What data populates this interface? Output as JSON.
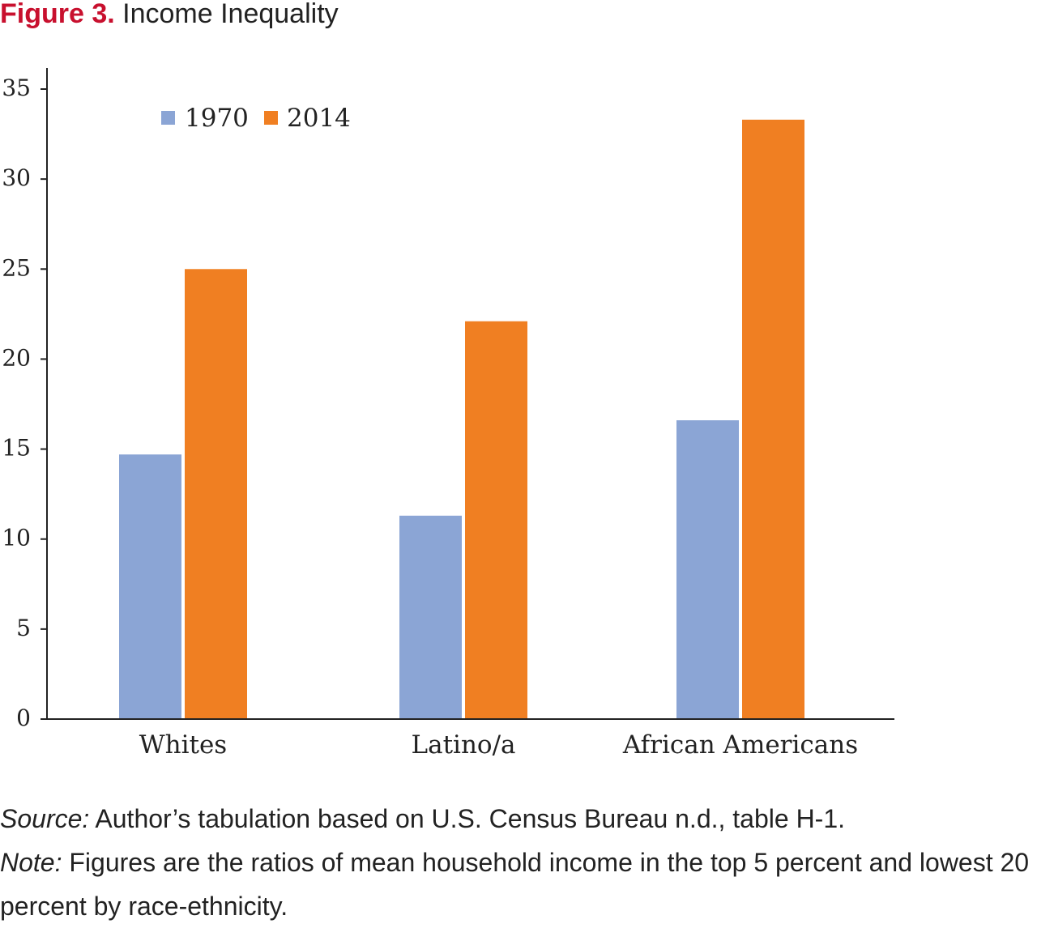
{
  "figure": {
    "label": "Figure 3.",
    "title": "Income Inequality"
  },
  "chart_data": {
    "type": "bar",
    "categories": [
      "Whites",
      "Latino/a",
      "African Americans"
    ],
    "series": [
      {
        "name": "1970",
        "color": "#8ba5d5",
        "values": [
          14.7,
          11.3,
          16.6
        ]
      },
      {
        "name": "2014",
        "color": "#f07f22",
        "values": [
          25.0,
          22.1,
          33.3
        ]
      }
    ],
    "yticks": [
      0,
      5,
      10,
      15,
      20,
      25,
      30,
      35
    ],
    "ylim": [
      0,
      35
    ],
    "xlabel": "",
    "ylabel": "",
    "grid": false,
    "legend_position": "top-left"
  },
  "notes": {
    "source_label": "Source:",
    "source_text": " Author’s tabulation based on U.S. Census Bureau n.d., table H-1.",
    "note_label": "Note:",
    "note_text": " Figures are the ratios of mean household income in the top 5 percent and lowest 20 percent by race-ethnicity."
  }
}
